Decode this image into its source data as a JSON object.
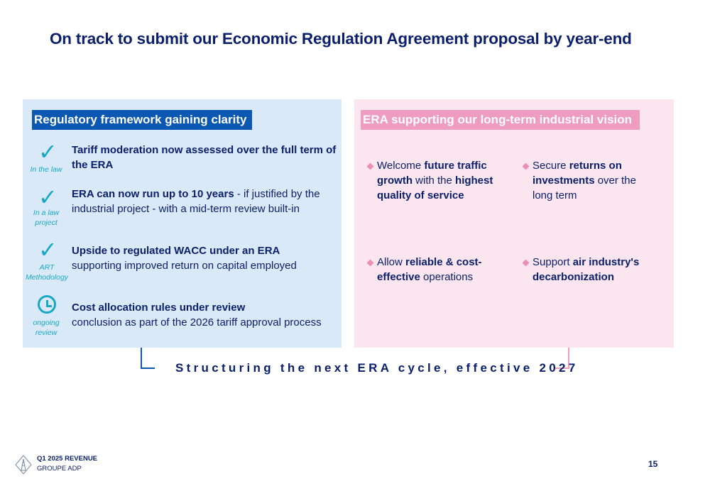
{
  "title": "On track to submit our Economic Regulation Agreement proposal by year-end",
  "left": {
    "header": "Regulatory framework gaining clarity",
    "items": [
      {
        "tag": "In the law",
        "bold": "Tariff moderation now assessed over the full term of the ERA",
        "normal": ""
      },
      {
        "tag": "In a law project",
        "bold": "ERA can now run up to 10 years",
        "normal": " - if justified by the industrial project - with a mid-term review built-in"
      },
      {
        "tag": "ART Methodology",
        "bold": "Upside to regulated WACC under an ERA",
        "normal": "supporting improved return on capital employed"
      },
      {
        "tag": "ongoing review",
        "bold": "Cost allocation rules under review",
        "normal": "conclusion as part of the 2026 tariff approval process"
      }
    ]
  },
  "right": {
    "header": "ERA supporting our long-term industrial vision",
    "bullets": [
      {
        "p1": "Welcome ",
        "b1": "future traffic growth",
        "p2": " with the ",
        "b2": "highest quality of service",
        "p3": ""
      },
      {
        "p1": "Secure ",
        "b1": "returns on investments",
        "p2": " over the long term",
        "b2": "",
        "p3": ""
      },
      {
        "p1": "Allow ",
        "b1": "reliable & cost-effective",
        "p2": " operations",
        "b2": "",
        "p3": ""
      },
      {
        "p1": "Support ",
        "b1": "air industry's decarbonization",
        "p2": "",
        "b2": "",
        "p3": ""
      }
    ]
  },
  "footer_statement": "Structuring the next ERA cycle, effective 2027",
  "footer": {
    "line1": "Q1 2025 REVENUE",
    "line2": "GROUPE ADP",
    "page": "15"
  },
  "icons": [
    "check-icon",
    "check-icon",
    "check-icon",
    "clock-icon",
    "diamond-bullet-icon",
    "eiffel-logo-icon"
  ],
  "colors": {
    "navy": "#0a1f6b",
    "blue_header": "#0b58b3",
    "pink_header": "#ee9cbf",
    "left_bg": "#dae9f8",
    "right_bg": "#fbe6ef",
    "accent": "#18a8c4"
  }
}
